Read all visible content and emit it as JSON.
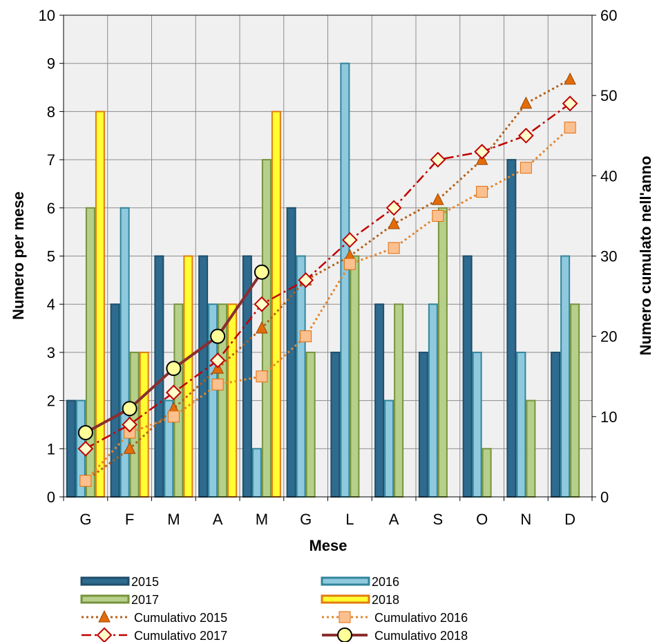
{
  "chart_data": {
    "type": "bar",
    "categories": [
      "G",
      "F",
      "M",
      "A",
      "M",
      "G",
      "L",
      "A",
      "S",
      "O",
      "N",
      "D"
    ],
    "xlabel": "Mese",
    "ylabel": "Numero per mese",
    "y2label": "Numero cumulato nell'anno",
    "ylim": [
      0,
      10
    ],
    "y2lim": [
      0,
      60
    ],
    "yticks": [
      "0",
      "1",
      "2",
      "3",
      "4",
      "5",
      "6",
      "7",
      "8",
      "9",
      "10"
    ],
    "y2ticks": [
      "0",
      "10",
      "20",
      "30",
      "40",
      "50",
      "60"
    ],
    "grid": true,
    "legend_position": "bottom",
    "bar_series": [
      {
        "name": "2015",
        "color": "#2e6b8e",
        "values": [
          2,
          4,
          5,
          5,
          5,
          6,
          3,
          4,
          3,
          5,
          7,
          3
        ]
      },
      {
        "name": "2016",
        "color": "#8ec9de",
        "values": [
          2,
          6,
          2,
          4,
          1,
          5,
          9,
          2,
          4,
          3,
          3,
          5
        ]
      },
      {
        "name": "2017",
        "color": "#b6cf8a",
        "values": [
          6,
          3,
          4,
          4,
          7,
          3,
          5,
          4,
          6,
          1,
          2,
          4
        ]
      },
      {
        "name": "2018",
        "color": "#ffff33",
        "values": [
          8,
          3,
          5,
          4,
          8
        ]
      }
    ],
    "line_series": [
      {
        "name": "Cumulativo 2015",
        "color": "#b35f18",
        "values": [
          2,
          6,
          11,
          16,
          21,
          27,
          30,
          34,
          37,
          42,
          49,
          52
        ]
      },
      {
        "name": "Cumulativo 2016",
        "color": "#e5852a",
        "values": [
          2,
          8,
          10,
          14,
          15,
          20,
          29,
          31,
          35,
          38,
          41,
          46
        ]
      },
      {
        "name": "Cumulativo 2017",
        "color": "#c00000",
        "values": [
          6,
          9,
          13,
          17,
          24,
          27,
          32,
          36,
          42,
          43,
          45,
          49
        ]
      },
      {
        "name": "Cumulativo 2018",
        "color": "#8b2e2e",
        "values": [
          8,
          11,
          16,
          20,
          28
        ]
      }
    ]
  }
}
